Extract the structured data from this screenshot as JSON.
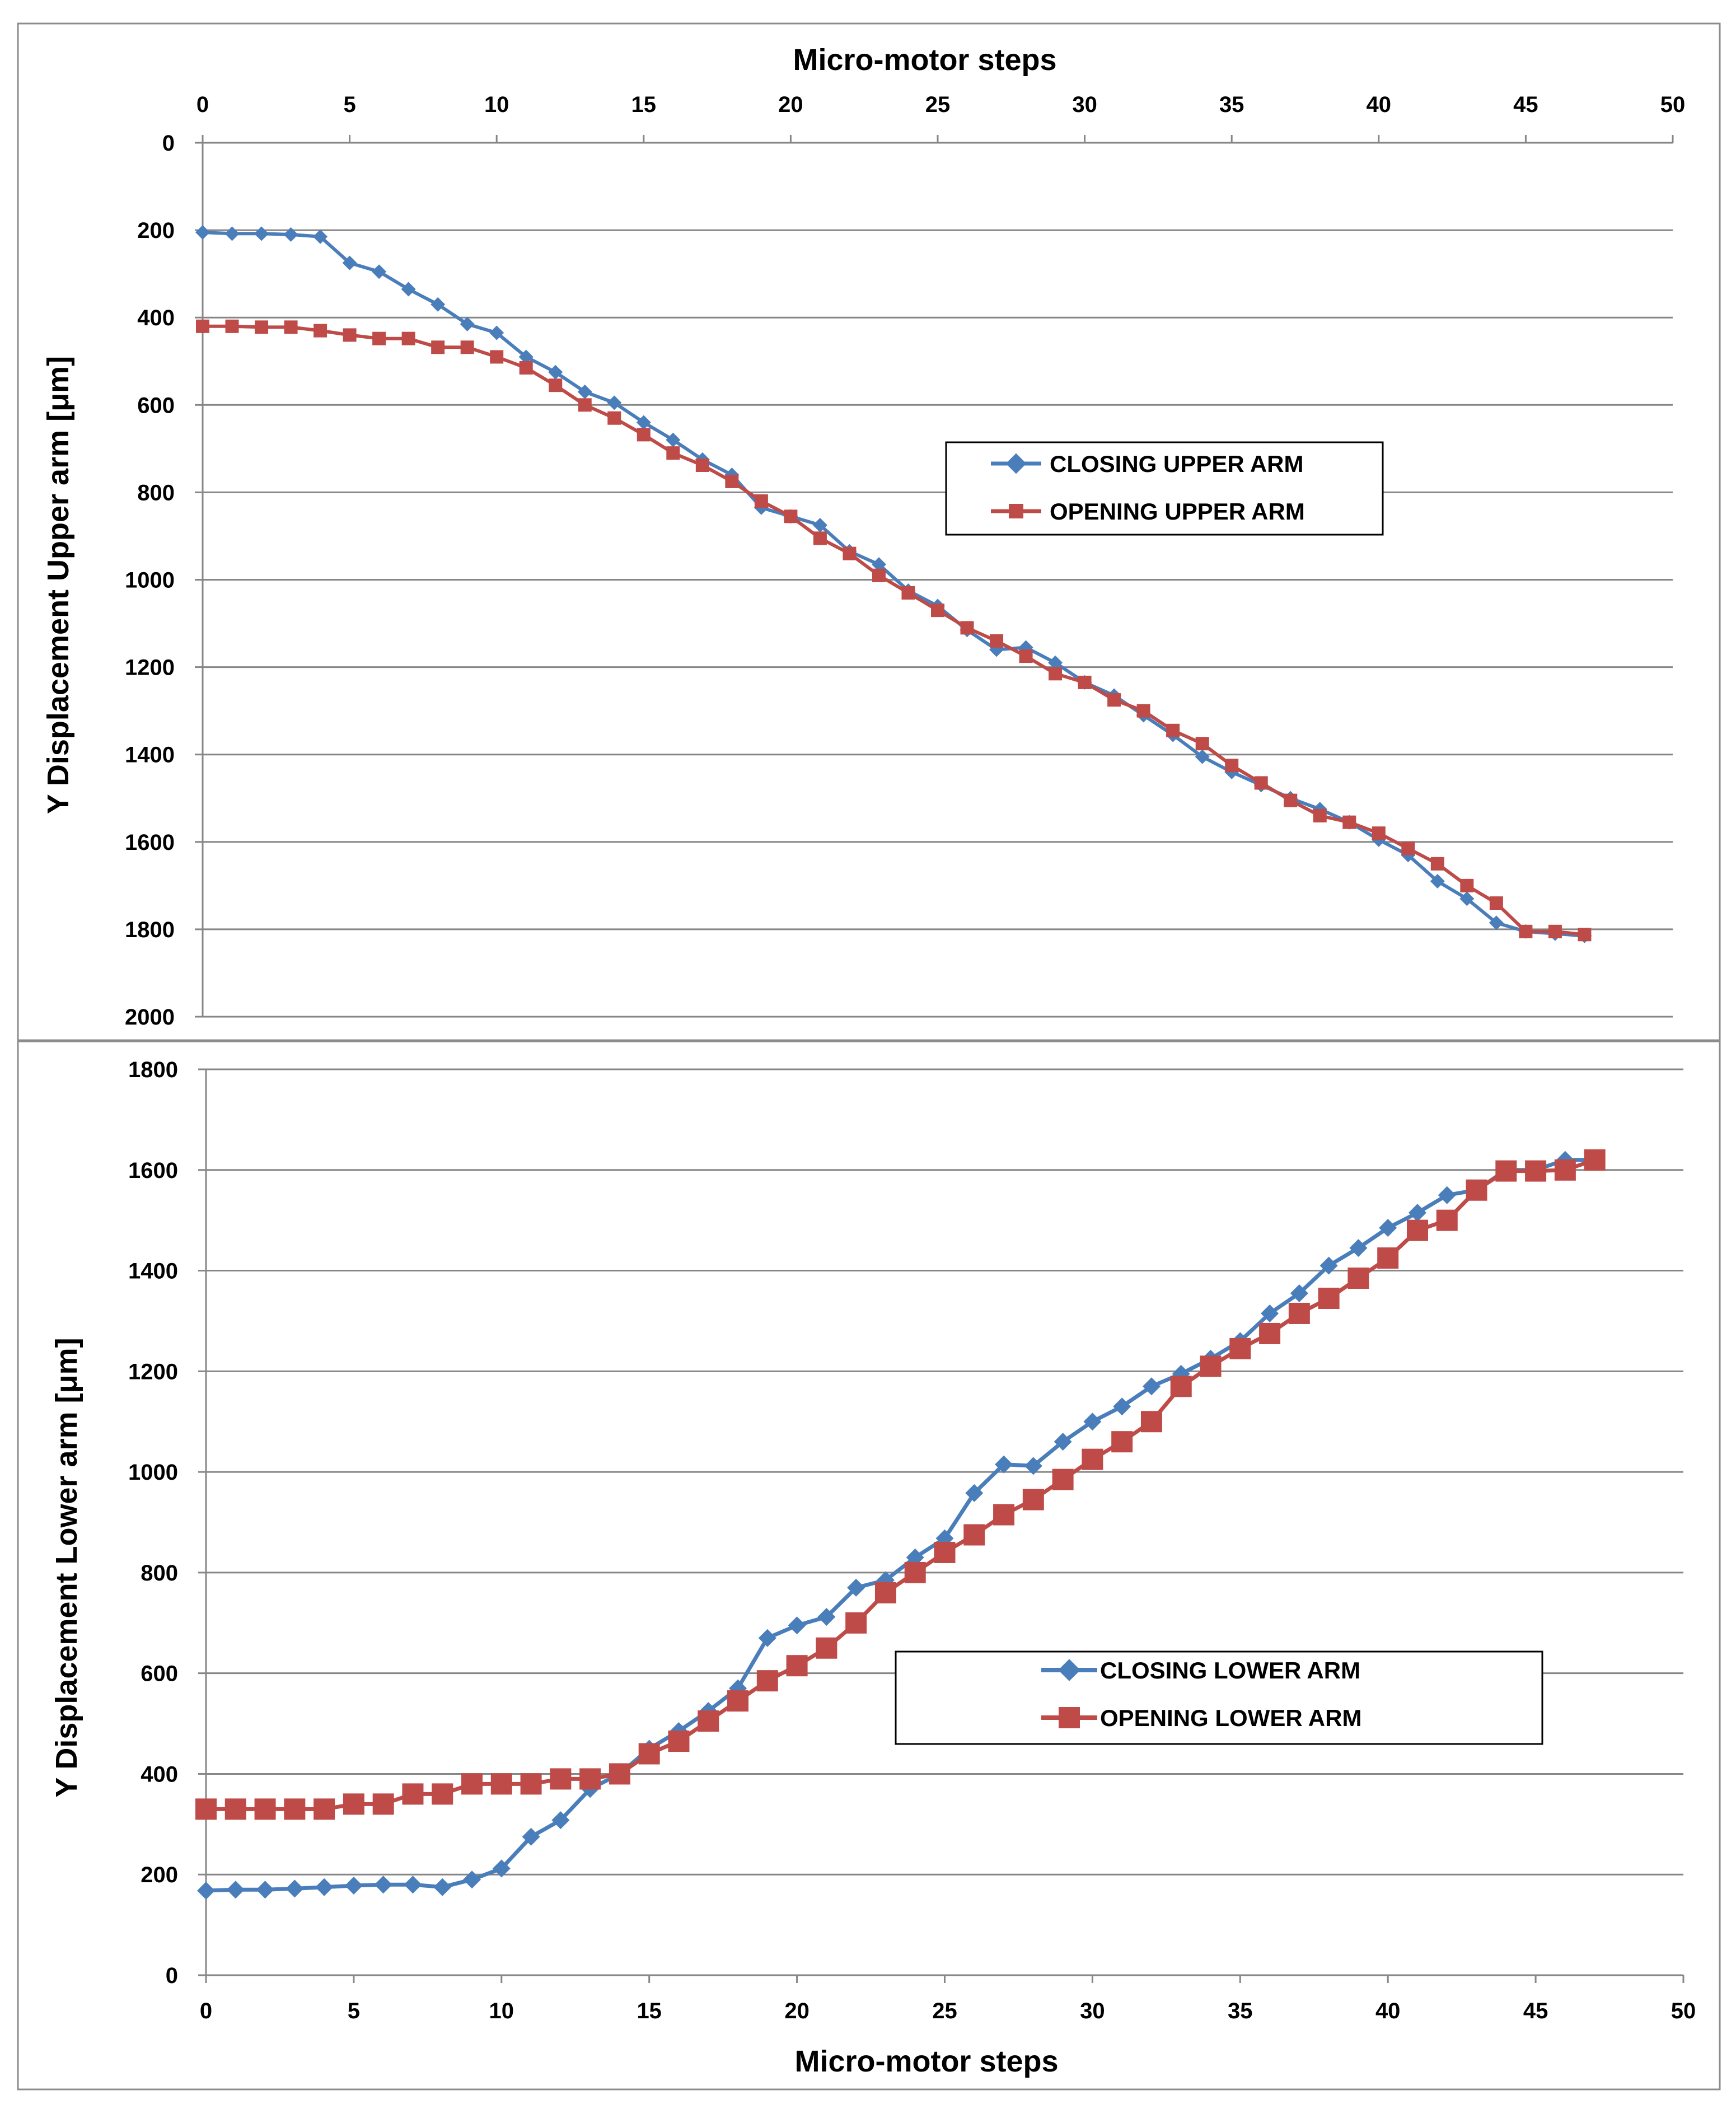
{
  "colors": {
    "closing": "#4a7ebb",
    "opening": "#be4b48",
    "grid": "#868686",
    "frame": "#8c8c8c"
  },
  "chart_data": [
    {
      "id": "upper",
      "type": "line",
      "title": "",
      "xlabel": "Micro-motor steps",
      "ylabel": "Y Displacement Upper arm [μm]",
      "xlim": [
        0,
        50
      ],
      "ylim": [
        0,
        2000
      ],
      "y_inverted": true,
      "x_axis_position": "top",
      "x_ticks": [
        0,
        5,
        10,
        15,
        20,
        25,
        30,
        35,
        40,
        45,
        50
      ],
      "y_ticks": [
        0,
        200,
        400,
        600,
        800,
        1000,
        1200,
        1400,
        1600,
        1800,
        2000
      ],
      "grid": true,
      "legend_position": "center-right",
      "x": [
        0,
        1,
        2,
        3,
        4,
        5,
        6,
        7,
        8,
        9,
        10,
        11,
        12,
        13,
        14,
        15,
        16,
        17,
        18,
        19,
        20,
        21,
        22,
        23,
        24,
        25,
        26,
        27,
        28,
        29,
        30,
        31,
        32,
        33,
        34,
        35,
        36,
        37,
        38,
        39,
        40,
        41,
        42,
        43,
        44,
        45,
        46,
        47
      ],
      "series": [
        {
          "name": "CLOSING UPPER ARM",
          "marker": "diamond",
          "values": [
            205,
            208,
            208,
            210,
            215,
            275,
            295,
            335,
            370,
            415,
            435,
            490,
            525,
            570,
            595,
            640,
            680,
            725,
            760,
            835,
            855,
            875,
            935,
            965,
            1025,
            1060,
            1115,
            1160,
            1155,
            1190,
            1235,
            1265,
            1310,
            1355,
            1405,
            1440,
            1470,
            1500,
            1525,
            1555,
            1595,
            1630,
            1690,
            1730,
            1785,
            1805,
            1810,
            1815
          ]
        },
        {
          "name": "OPENING UPPER ARM",
          "marker": "square",
          "values": [
            420,
            420,
            422,
            422,
            430,
            440,
            448,
            448,
            468,
            468,
            490,
            515,
            555,
            600,
            630,
            668,
            710,
            738,
            775,
            820,
            855,
            905,
            940,
            990,
            1030,
            1070,
            1110,
            1140,
            1175,
            1215,
            1235,
            1275,
            1300,
            1345,
            1375,
            1425,
            1465,
            1505,
            1540,
            1555,
            1580,
            1615,
            1650,
            1700,
            1740,
            1805,
            1805,
            1812
          ]
        }
      ]
    },
    {
      "id": "lower",
      "type": "line",
      "title": "",
      "xlabel": "Micro-motor steps",
      "ylabel": "Y Displacement Lower arm [μm]",
      "xlim": [
        0,
        50
      ],
      "ylim": [
        0,
        1800
      ],
      "y_inverted": false,
      "x_axis_position": "bottom",
      "x_ticks": [
        0,
        5,
        10,
        15,
        20,
        25,
        30,
        35,
        40,
        45,
        50
      ],
      "y_ticks": [
        0,
        200,
        400,
        600,
        800,
        1000,
        1200,
        1400,
        1600,
        1800
      ],
      "grid": true,
      "legend_position": "lower-right",
      "x": [
        0,
        1,
        2,
        3,
        4,
        5,
        6,
        7,
        8,
        9,
        10,
        11,
        12,
        13,
        14,
        15,
        16,
        17,
        18,
        19,
        20,
        21,
        22,
        23,
        24,
        25,
        26,
        27,
        28,
        29,
        30,
        31,
        32,
        33,
        34,
        35,
        36,
        37,
        38,
        39,
        40,
        41,
        42,
        43,
        44,
        45,
        46,
        47
      ],
      "series": [
        {
          "name": "CLOSING LOWER ARM",
          "marker": "diamond",
          "values": [
            168,
            170,
            170,
            172,
            175,
            178,
            180,
            180,
            175,
            190,
            212,
            275,
            308,
            370,
            400,
            450,
            485,
            525,
            570,
            670,
            695,
            712,
            770,
            785,
            830,
            868,
            958,
            1015,
            1012,
            1060,
            1100,
            1130,
            1170,
            1195,
            1225,
            1260,
            1315,
            1355,
            1410,
            1445,
            1485,
            1515,
            1550,
            1560,
            1600,
            1600,
            1620,
            1620
          ]
        },
        {
          "name": "OPENING LOWER ARM",
          "marker": "square",
          "values": [
            330,
            330,
            330,
            330,
            330,
            340,
            340,
            360,
            360,
            380,
            380,
            380,
            390,
            390,
            400,
            440,
            465,
            505,
            545,
            585,
            615,
            650,
            700,
            760,
            800,
            840,
            875,
            915,
            945,
            985,
            1025,
            1060,
            1100,
            1170,
            1210,
            1245,
            1275,
            1315,
            1345,
            1385,
            1425,
            1480,
            1500,
            1560,
            1598,
            1598,
            1600,
            1620
          ]
        }
      ]
    }
  ]
}
